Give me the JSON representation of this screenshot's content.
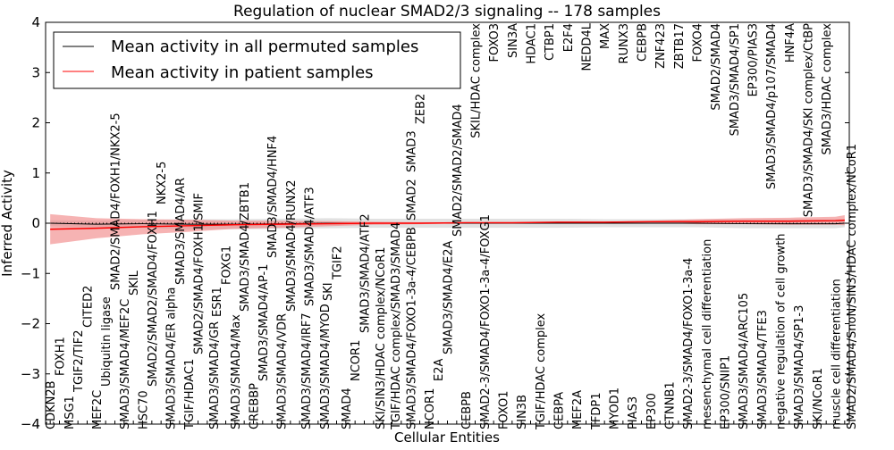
{
  "chart_data": {
    "type": "line",
    "title": "Regulation of nuclear SMAD2/3 signaling -- 178 samples",
    "xlabel": "Cellular Entities",
    "ylabel": "Inferred Activity",
    "ylim": [
      -4,
      4
    ],
    "yticks": [
      -4,
      -3,
      -2,
      -1,
      0,
      1,
      2,
      3,
      4
    ],
    "legend_placement": "top-left",
    "legend": [
      {
        "label": "Mean activity in all permuted samples",
        "color": "#000000"
      },
      {
        "label": "Mean activity in patient samples",
        "color": "#ff0000"
      }
    ],
    "categories": [
      "CDKN2B",
      "FOXH1",
      "MSG1",
      "TGIF2/TIF2",
      "CITED2",
      "MEF2C",
      "Ubiquitin ligase",
      "SMAD2/SMAD4/FOXH1/NKX2-5",
      "SMAD3/SMAD4/MEF2C",
      "SKIL",
      "HSC70",
      "SMAD2/SMAD2/SMAD4/FOXH1",
      "NKX2-5",
      "SMAD3/SMAD4/ER alpha",
      "SMAD3/SMAD4/AR",
      "TGIF/HDAC1",
      "SMAD2/SMAD4/FOXH1/SMIF",
      "SMAD3/SMAD4/GR",
      "ESR1",
      "FOXG1",
      "SMAD3/SMAD4/Max",
      "SMAD3/SMAD4/ZBTB1",
      "CREBBP",
      "SMAD3/SMAD4/AP-1",
      "SMAD3/SMAD4/HNF4",
      "SMAD3/SMAD4/VDR",
      "SMAD3/SMAD4/RUNX2",
      "SMAD3/SMAD4/IRF7",
      "SMAD3/SMAD4/ATF3",
      "SMAD3/SMAD4/MYOD",
      "SKI",
      "TGIF2",
      "SMAD4",
      "NCOR1",
      "SMAD3/SMAD4/ATF2",
      "SKI/SIN3/HDAC complex/NCoR1",
      "TGIF/HDAC complex/SMAD3/SMAD4",
      "SMAD3/SMAD4/FOXO1-3a-4/CEBPB",
      "SMAD2",
      "SMAD3",
      "ZEB2",
      "NCOR1",
      "E2A",
      "SMAD3/SMAD4/E2A",
      "SMAD2/SMAD2/SMAD4",
      "CEBPB",
      "SKIL/HDAC complex",
      "SMAD2-3/SMAD4/FOXO1-3a-4/FOXG1",
      "FOXO3",
      "FOXO1",
      "SIN3A",
      "SIN3B",
      "HDAC1",
      "TGIF/HDAC complex",
      "CTBP1",
      "CEBPA",
      "E2F4",
      "MEF2A",
      "NEDD4L",
      "TFDP1",
      "MAX",
      "MYOD1",
      "RUNX3",
      "PIAS3",
      "CEBPB",
      "EP300",
      "ZNF423",
      "CTNNB1",
      "ZBTB17",
      "SMAD2-3/SMAD4/FOXO1-3a-4",
      "FOXO4",
      "mesenchymal cell differentiation",
      "SMAD2/SMAD4",
      "EP300/SNIP1",
      "SMAD3/SMAD4/SP1",
      "SMAD3/SMAD4/ARC105",
      "EP300/PIAS3",
      "SMAD3/SMAD4/TFE3",
      "SMAD3/SMAD4/p107/SMAD4",
      "negative regulation of cell growth",
      "HNF4A",
      "SMAD3/SMAD4/SP1-3",
      "SMAD3/SMAD4/SKI complex/CtBP",
      "SKI/NCoR1",
      "SMAD3/HDAC complex",
      "muscle cell differentiation",
      "SMAD2/SMAD4/SnoN/SIN3/HDAC complex/NCoR1"
    ],
    "x": [
      0,
      5,
      10,
      15,
      20,
      25,
      30,
      35,
      40,
      45,
      50,
      55,
      60,
      65,
      70,
      75,
      80,
      85,
      86
    ],
    "series": [
      {
        "name": "Mean activity in all permuted samples",
        "color": "#000000",
        "values": [
          0,
          -0.02,
          -0.01,
          -0.02,
          -0.02,
          -0.01,
          0,
          0,
          0,
          0,
          0,
          0,
          0,
          0,
          0,
          -0.01,
          -0.01,
          -0.01,
          0
        ],
        "band_halfwidth": [
          0.06,
          0.07,
          0.08,
          0.1,
          0.1,
          0.1,
          0.1,
          0.09,
          0.09,
          0.09,
          0.09,
          0.09,
          0.08,
          0.08,
          0.08,
          0.09,
          0.09,
          0.09,
          0.08
        ],
        "band_color": "#d9d9d9"
      },
      {
        "name": "Mean activity in patient samples",
        "color": "#ff0000",
        "values": [
          -0.12,
          -0.1,
          -0.07,
          -0.05,
          -0.03,
          -0.02,
          -0.01,
          0,
          0,
          0.01,
          0.01,
          0.02,
          0.02,
          0.03,
          0.03,
          0.04,
          0.04,
          0.05,
          0.06
        ],
        "band_halfwidth": [
          0.3,
          0.2,
          0.15,
          0.12,
          0.08,
          0.07,
          0.05,
          0.03,
          0.02,
          0.01,
          0.01,
          0.01,
          0.01,
          0.02,
          0.05,
          0.06,
          0.07,
          0.08,
          0.1
        ],
        "band_color": "#f08080"
      }
    ],
    "grid": false
  }
}
